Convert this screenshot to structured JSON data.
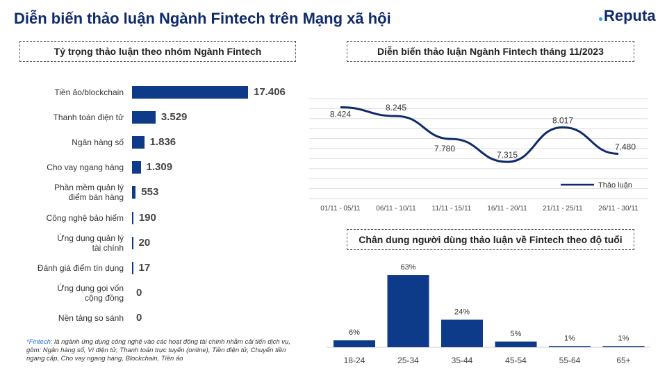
{
  "title": "Diễn biến thảo luận Ngành Fintech trên Mạng xã hội",
  "logo": "Reputa",
  "colors": {
    "primary": "#0e3a8a",
    "title": "#0e2a6b"
  },
  "chart_data": [
    {
      "type": "bar",
      "orientation": "horizontal",
      "title": "Tỷ trọng thảo luận theo nhóm Ngành Fintech",
      "categories": [
        "Tiền ảo/blockchain",
        "Thanh toán điện tử",
        "Ngân hàng số",
        "Cho vay ngang hàng",
        "Phần mềm quản lý điểm bán hàng",
        "Công nghệ bảo hiểm",
        "Ứng dụng quản lý tài chính",
        "Đánh giá điểm tín dụng",
        "Ứng dụng gọi vốn cộng đồng",
        "Nền tảng so sánh"
      ],
      "category_lines": [
        [
          "Tiền ảo/blockchain"
        ],
        [
          "Thanh toán điện tử"
        ],
        [
          "Ngân hàng số"
        ],
        [
          "Cho vay ngang hàng"
        ],
        [
          "Phần mềm quản lý",
          "điểm bán hàng"
        ],
        [
          "Công nghệ bảo hiểm"
        ],
        [
          "Ứng dụng quản lý",
          "tài chính"
        ],
        [
          "Đánh giá điểm tín dụng"
        ],
        [
          "Ứng dụng gọi vốn",
          "cộng đồng"
        ],
        [
          "Nền tảng so sánh"
        ]
      ],
      "values": [
        17406,
        3529,
        1836,
        1309,
        553,
        190,
        20,
        17,
        0,
        0
      ],
      "labels": [
        "17.406",
        "3.529",
        "1.836",
        "1.309",
        "553",
        "190",
        "20",
        "17",
        "0",
        "0"
      ]
    },
    {
      "type": "line",
      "title": "Diễn biến thảo luận Ngành Fintech tháng 11/2023",
      "categories": [
        "01/11 - 05/11",
        "06/11 - 10/11",
        "11/11 - 15/11",
        "16/11 - 20/11",
        "21/11 - 25/11",
        "26/11 - 30/11"
      ],
      "series": [
        {
          "name": "Thảo luận",
          "values": [
            8424,
            8245,
            7780,
            7315,
            8017,
            7480
          ]
        }
      ],
      "labels": [
        "8.424",
        "8.245",
        "7.780",
        "7.315",
        "8.017",
        "7.480"
      ],
      "legend": "bottom-right",
      "grid": true,
      "ylim": [
        6570,
        8600
      ]
    },
    {
      "type": "bar",
      "title": "Chân dung người dùng thảo luận về Fintech theo độ tuổi",
      "categories": [
        "18-24",
        "25-34",
        "35-44",
        "45-54",
        "55-64",
        "65+"
      ],
      "values": [
        6,
        63,
        24,
        5,
        1,
        1
      ],
      "labels": [
        "6%",
        "63%",
        "24%",
        "5%",
        "1%",
        "1%"
      ]
    }
  ],
  "note": {
    "term": "*Fintech:",
    "text": " là ngành ứng dụng công nghệ vào các hoạt động tài chính nhằm cải tiến dịch vụ, gồm: Ngân hàng số, Ví điện tử, Thanh toán trực tuyến (online), Tiền điện tử, Chuyển tiền ngang cấp, Cho vay ngang hàng, Blockchain, Tiền ảo"
  }
}
